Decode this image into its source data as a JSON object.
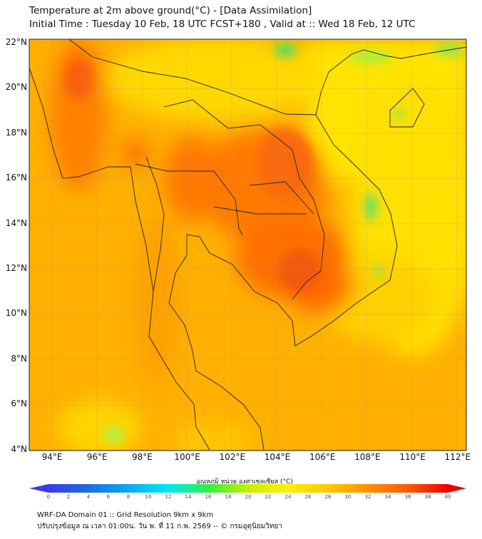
{
  "header": {
    "title": "Temperature at 2m above ground(°C) - [Data Assimilation]",
    "subtitle": "Initial Time : Tuesday 10 Feb, 18 UTC FCST+180 , Valid at :: Wed 18 Feb, 12 UTC"
  },
  "map": {
    "lat_labels": [
      "22°N",
      "20°N",
      "18°N",
      "16°N",
      "14°N",
      "12°N",
      "10°N",
      "8°N",
      "6°N",
      "4°N"
    ],
    "lon_labels": [
      "94°E",
      "96°E",
      "98°E",
      "100°E",
      "102°E",
      "104°E",
      "106°E",
      "108°E",
      "110°E",
      "112°E"
    ],
    "extent": {
      "lon": [
        93,
        112.5
      ],
      "lat": [
        4,
        22.2
      ]
    }
  },
  "colorbar": {
    "title": "อุณหภูมิ หน่วย องศาเซลเซียส (°C)",
    "ticks": [
      "0",
      "2",
      "4",
      "6",
      "8",
      "10",
      "12",
      "14",
      "16",
      "18",
      "20",
      "22",
      "24",
      "26",
      "28",
      "30",
      "32",
      "34",
      "36",
      "38",
      "40"
    ],
    "min": 0,
    "max": 40,
    "colors": [
      "#3b3be8",
      "#1a6fe0",
      "#10a8f0",
      "#00eaf0",
      "#30f040",
      "#c8f000",
      "#fff000",
      "#ffc800",
      "#ff9000",
      "#ff5a00",
      "#f00000"
    ]
  },
  "footer": {
    "line1": "WRF-DA Domain 01 :: Grid Resolution 9km x 9km",
    "line2": "ปรับปรุงข้อมูล ณ เวลา 01:00น. วัน พ. ที่ 11 ก.พ. 2569 -- © กรมอุตุนิยมวิทยา"
  }
}
